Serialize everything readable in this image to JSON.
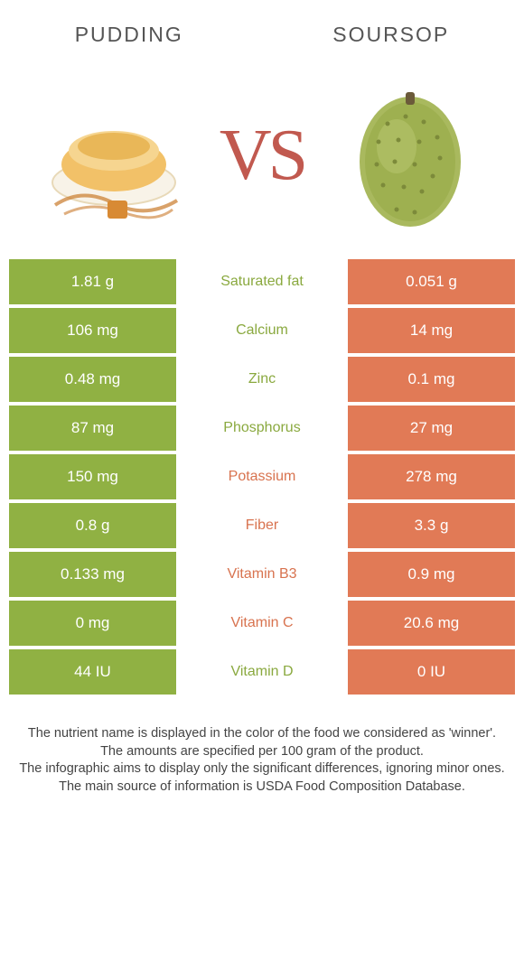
{
  "colors": {
    "green": "#90b143",
    "orange": "#e17a56",
    "label_green": "#8aa93f",
    "label_orange": "#d8734f",
    "white": "#ffffff",
    "text_gray": "#555555"
  },
  "header": {
    "left_title": "Pudding",
    "right_title": "Soursop",
    "vs": "VS"
  },
  "rows": [
    {
      "left": "1.81 g",
      "label": "Saturated fat",
      "right": "0.051 g",
      "winner": "left"
    },
    {
      "left": "106 mg",
      "label": "Calcium",
      "right": "14 mg",
      "winner": "left"
    },
    {
      "left": "0.48 mg",
      "label": "Zinc",
      "right": "0.1 mg",
      "winner": "left"
    },
    {
      "left": "87 mg",
      "label": "Phosphorus",
      "right": "27 mg",
      "winner": "left"
    },
    {
      "left": "150 mg",
      "label": "Potassium",
      "right": "278 mg",
      "winner": "right"
    },
    {
      "left": "0.8 g",
      "label": "Fiber",
      "right": "3.3 g",
      "winner": "right"
    },
    {
      "left": "0.133 mg",
      "label": "Vitamin B3",
      "right": "0.9 mg",
      "winner": "right"
    },
    {
      "left": "0 mg",
      "label": "Vitamin C",
      "right": "20.6 mg",
      "winner": "right"
    },
    {
      "left": "44 IU",
      "label": "Vitamin D",
      "right": "0 IU",
      "winner": "left"
    }
  ],
  "footer": {
    "line1": "The nutrient name is displayed in the color of the food we considered as 'winner'.",
    "line2": "The amounts are specified per 100 gram of the product.",
    "line3": "The infographic aims to display only the significant differences, ignoring minor ones.",
    "line4": "The main source of information is USDA Food Composition Database."
  }
}
